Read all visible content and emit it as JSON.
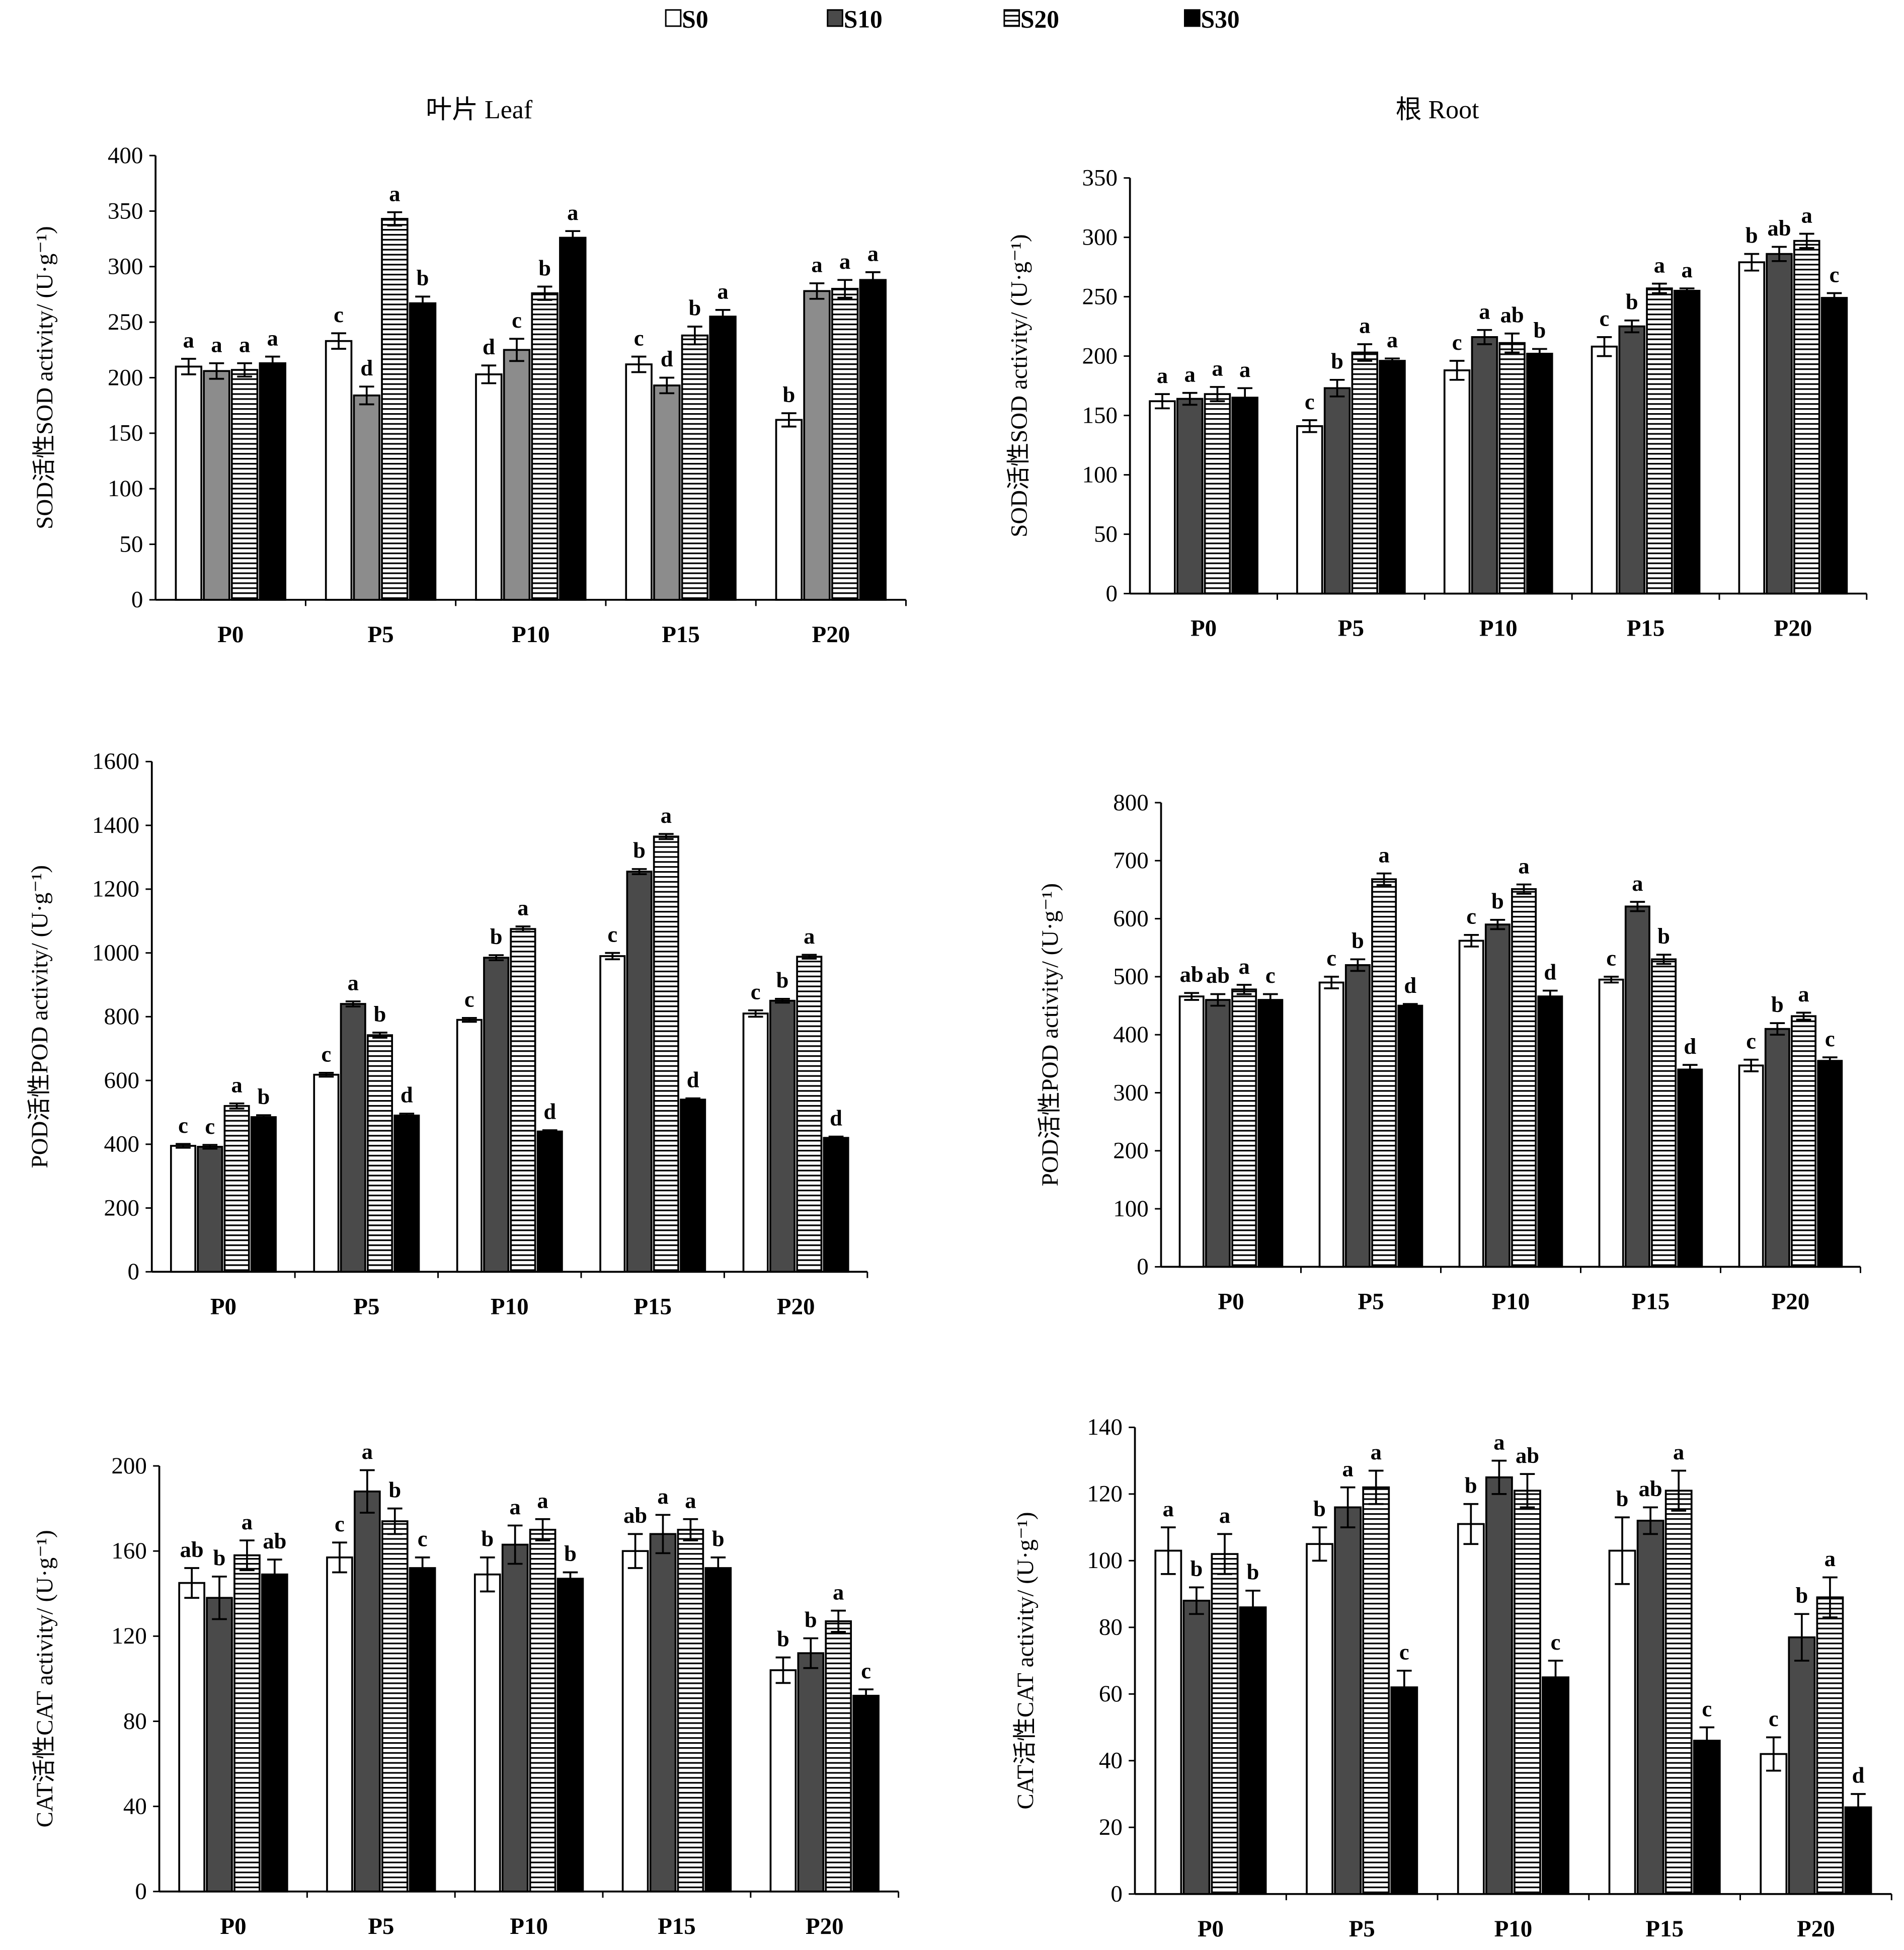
{
  "legend": [
    {
      "name": "S0",
      "fill": "white"
    },
    {
      "name": "S10",
      "fill": "darkgray"
    },
    {
      "name": "S20",
      "fill": "stripes"
    },
    {
      "name": "S30",
      "fill": "black"
    }
  ],
  "colors": {
    "s10_dark": "#4a4a4a",
    "s10_leaf_sod": "#8c8c8c",
    "s30": "#000000",
    "axis": "#000000"
  },
  "chart_data": [
    {
      "type": "bar",
      "title": "叶片 Leaf",
      "ylabel": "SOD活性SOD activity/ (U·g⁻¹)",
      "ylim": [
        0,
        400
      ],
      "ytick_step": 50,
      "grid": false,
      "categories": [
        "P0",
        "P5",
        "P10",
        "P15",
        "P20"
      ],
      "series": [
        {
          "name": "S0",
          "values": [
            210,
            233,
            203,
            212,
            162
          ],
          "errors": [
            7,
            7,
            8,
            7,
            6
          ],
          "letters": [
            "a",
            "c",
            "d",
            "c",
            "b"
          ]
        },
        {
          "name": "S10",
          "values": [
            206,
            184,
            225,
            193,
            278
          ],
          "errors": [
            7,
            8,
            10,
            7,
            7
          ],
          "letters": [
            "a",
            "d",
            "c",
            "d",
            "a"
          ]
        },
        {
          "name": "S20",
          "values": [
            207,
            343,
            276,
            238,
            280
          ],
          "errors": [
            6,
            6,
            6,
            8,
            8
          ],
          "letters": [
            "a",
            "a",
            "b",
            "b",
            "a"
          ]
        },
        {
          "name": "S30",
          "values": [
            213,
            267,
            326,
            255,
            288
          ],
          "errors": [
            6,
            6,
            6,
            6,
            7
          ],
          "letters": [
            "a",
            "b",
            "a",
            "a",
            "a"
          ]
        }
      ]
    },
    {
      "type": "bar",
      "title": "根 Root",
      "ylabel": "SOD活性SOD activity/ (U·g⁻¹)",
      "ylim": [
        0,
        350
      ],
      "ytick_step": 50,
      "grid": false,
      "categories": [
        "P0",
        "P5",
        "P10",
        "P15",
        "P20"
      ],
      "series": [
        {
          "name": "S0",
          "values": [
            162,
            141,
            188,
            208,
            279
          ],
          "errors": [
            6,
            5,
            8,
            8,
            7
          ],
          "letters": [
            "a",
            "c",
            "c",
            "c",
            "b"
          ]
        },
        {
          "name": "S10",
          "values": [
            164,
            173,
            216,
            225,
            286
          ],
          "errors": [
            5,
            7,
            6,
            5,
            6
          ],
          "letters": [
            "a",
            "b",
            "a",
            "b",
            "ab"
          ]
        },
        {
          "name": "S20",
          "values": [
            168,
            203,
            211,
            257,
            297
          ],
          "errors": [
            6,
            7,
            8,
            4,
            6
          ],
          "letters": [
            "a",
            "a",
            "ab",
            "a",
            "a"
          ]
        },
        {
          "name": "S30",
          "values": [
            165,
            196,
            202,
            255,
            249
          ],
          "errors": [
            8,
            2,
            4,
            2,
            4
          ],
          "letters": [
            "a",
            "a",
            "b",
            "a",
            "c"
          ]
        }
      ]
    },
    {
      "type": "bar",
      "title": "",
      "ylabel": "POD活性POD activity/ (U·g⁻¹)",
      "ylim": [
        0,
        1600
      ],
      "ytick_step": 200,
      "grid": false,
      "categories": [
        "P0",
        "P5",
        "P10",
        "P15",
        "P20"
      ],
      "series": [
        {
          "name": "S0",
          "values": [
            395,
            618,
            790,
            990,
            810
          ],
          "errors": [
            6,
            6,
            6,
            10,
            10
          ],
          "letters": [
            "c",
            "c",
            "c",
            "c",
            "c"
          ]
        },
        {
          "name": "S10",
          "values": [
            392,
            840,
            985,
            1255,
            850
          ],
          "errors": [
            6,
            8,
            8,
            8,
            6
          ],
          "letters": [
            "c",
            "a",
            "b",
            "b",
            "b"
          ]
        },
        {
          "name": "S20",
          "values": [
            520,
            742,
            1075,
            1365,
            988
          ],
          "errors": [
            8,
            8,
            8,
            8,
            6
          ],
          "letters": [
            "a",
            "b",
            "a",
            "a",
            "a"
          ]
        },
        {
          "name": "S30",
          "values": [
            485,
            490,
            440,
            540,
            420
          ],
          "errors": [
            6,
            6,
            4,
            4,
            4
          ],
          "letters": [
            "b",
            "d",
            "d",
            "d",
            "d"
          ]
        }
      ]
    },
    {
      "type": "bar",
      "title": "",
      "ylabel": "POD活性POD activity/ (U·g⁻¹)",
      "ylim": [
        0,
        800
      ],
      "ytick_step": 100,
      "grid": false,
      "categories": [
        "P0",
        "P5",
        "P10",
        "P15",
        "P20"
      ],
      "series": [
        {
          "name": "S0",
          "values": [
            466,
            490,
            562,
            495,
            347
          ],
          "errors": [
            6,
            10,
            10,
            5,
            10
          ],
          "letters": [
            "ab",
            "c",
            "c",
            "c",
            "c"
          ]
        },
        {
          "name": "S10",
          "values": [
            460,
            520,
            590,
            621,
            410
          ],
          "errors": [
            10,
            10,
            8,
            8,
            10
          ],
          "letters": [
            "ab",
            "b",
            "b",
            "a",
            "b"
          ]
        },
        {
          "name": "S20",
          "values": [
            478,
            668,
            651,
            530,
            432
          ],
          "errors": [
            8,
            10,
            8,
            8,
            6
          ],
          "letters": [
            "a",
            "a",
            "a",
            "b",
            "a"
          ]
        },
        {
          "name": "S30",
          "values": [
            460,
            450,
            466,
            340,
            355
          ],
          "errors": [
            10,
            3,
            10,
            8,
            6
          ],
          "letters": [
            "c",
            "d",
            "d",
            "d",
            "c"
          ]
        }
      ]
    },
    {
      "type": "bar",
      "title": "",
      "ylabel": "CAT活性CAT activity/ (U·g⁻¹)",
      "ylim": [
        0,
        200
      ],
      "ytick_step": 40,
      "grid": false,
      "categories": [
        "P0",
        "P5",
        "P10",
        "P15",
        "P20"
      ],
      "series": [
        {
          "name": "S0",
          "values": [
            145,
            157,
            149,
            160,
            104
          ],
          "errors": [
            7,
            7,
            8,
            8,
            6
          ],
          "letters": [
            "ab",
            "c",
            "b",
            "ab",
            "b"
          ]
        },
        {
          "name": "S10",
          "values": [
            138,
            188,
            163,
            168,
            112
          ],
          "errors": [
            10,
            10,
            9,
            9,
            7
          ],
          "letters": [
            "b",
            "a",
            "a",
            "a",
            "b"
          ]
        },
        {
          "name": "S20",
          "values": [
            158,
            174,
            170,
            170,
            127
          ],
          "errors": [
            7,
            6,
            5,
            5,
            5
          ],
          "letters": [
            "a",
            "b",
            "a",
            "a",
            "a"
          ]
        },
        {
          "name": "S30",
          "values": [
            149,
            152,
            147,
            152,
            92
          ],
          "errors": [
            7,
            5,
            3,
            5,
            3
          ],
          "letters": [
            "ab",
            "c",
            "b",
            "b",
            "c"
          ]
        }
      ]
    },
    {
      "type": "bar",
      "title": "",
      "ylabel": "CAT活性CAT activity/ (U·g⁻¹)",
      "ylim": [
        0,
        140
      ],
      "ytick_step": 20,
      "grid": false,
      "categories": [
        "P0",
        "P5",
        "P10",
        "P15",
        "P20"
      ],
      "series": [
        {
          "name": "S0",
          "values": [
            103,
            105,
            111,
            103,
            42
          ],
          "errors": [
            7,
            5,
            6,
            10,
            5
          ],
          "letters": [
            "a",
            "b",
            "b",
            "b",
            "c"
          ]
        },
        {
          "name": "S10",
          "values": [
            88,
            116,
            125,
            112,
            77
          ],
          "errors": [
            4,
            6,
            5,
            4,
            7
          ],
          "letters": [
            "b",
            "a",
            "a",
            "ab",
            "b"
          ]
        },
        {
          "name": "S20",
          "values": [
            102,
            122,
            121,
            121,
            89
          ],
          "errors": [
            6,
            5,
            5,
            6,
            6
          ],
          "letters": [
            "a",
            "a",
            "ab",
            "a",
            "a"
          ]
        },
        {
          "name": "S30",
          "values": [
            86,
            62,
            65,
            46,
            26
          ],
          "errors": [
            5,
            5,
            5,
            4,
            4
          ],
          "letters": [
            "b",
            "c",
            "c",
            "c",
            "d"
          ]
        }
      ]
    }
  ]
}
